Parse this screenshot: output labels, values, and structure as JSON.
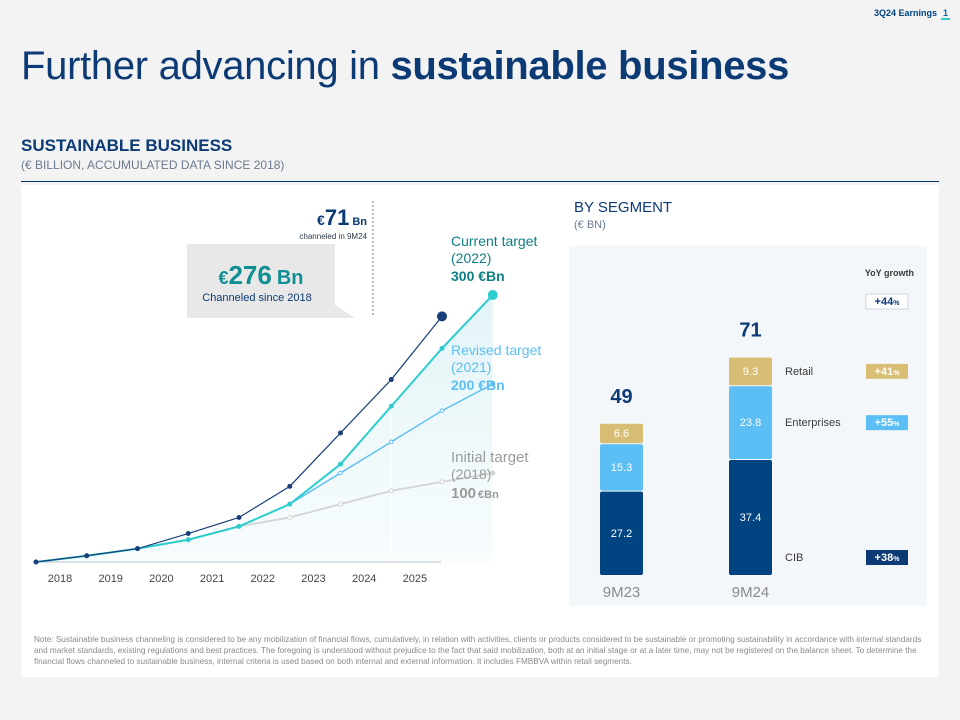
{
  "header": {
    "label": "3Q24 Earnings",
    "page": "1"
  },
  "title": {
    "normal": "Further advancing in ",
    "bold": "sustainable business"
  },
  "section": {
    "title": "SUSTAINABLE BUSINESS",
    "subtitle": "(€ BILLION, ACCUMULATED DATA SINCE 2018)"
  },
  "callouts": {
    "ytd_currency": "€",
    "ytd_value": "71",
    "ytd_unit": "Bn",
    "ytd_note": "channeled in 9M24",
    "total_currency": "€",
    "total_value": "276",
    "total_unit": "Bn",
    "total_note": "Channeled since 2018"
  },
  "targets": {
    "current": {
      "line1": "Current target",
      "line2": "(2022)",
      "value": "300 €Bn"
    },
    "revised": {
      "line1": "Revised target",
      "line2": "(2021)",
      "value": "200 €Bn"
    },
    "initial": {
      "line1": "Initial target",
      "line2": "(2018)",
      "value": "100",
      "unit": "€Bn"
    }
  },
  "segment": {
    "title": "BY SEGMENT",
    "subtitle": "(€ BN)",
    "yoy_header": "YoY growth"
  },
  "note": "Note: Sustainable business channeling is considered to be any mobilization of financial flows, cumulatively, in relation with activities, clients or products considered to be sustainable or promoting sustainability in accordance with internal standards and market standards, existing regulations and best practices. The foregoing is understood without prejudice to the fact that said mobilization, both at an initial stage or at a later time, may not be registered on the balance sheet. To determine the financial flows channeled to sustainable business, internal criteria is used based on both internal and external information. It includes FMBBVA within retail segments.",
  "colors": {
    "navy": "#0b3a75",
    "actual": "#1a3f7a",
    "current": "#2dcccd",
    "revised": "#5bbef5",
    "initial": "#d3d3d3",
    "cib": "#004481",
    "enterprises": "#5bbef5",
    "retail": "#d8be75"
  },
  "chart_data": [
    {
      "type": "line",
      "x_ticks": [
        "2018",
        "2019",
        "2020",
        "2021",
        "2022",
        "2023",
        "2024",
        "2025"
      ],
      "ylim": [
        0,
        300
      ],
      "series": [
        {
          "name": "Channeled",
          "points": [
            [
              2018,
              0
            ],
            [
              2018.5,
              7
            ],
            [
              2019,
              15
            ],
            [
              2019.5,
              32
            ],
            [
              2020,
              50
            ],
            [
              2020.5,
              85
            ],
            [
              2021,
              145
            ],
            [
              2021.5,
              205
            ],
            [
              2022,
              276
            ]
          ]
        },
        {
          "name": "Current target (2022)",
          "points": [
            [
              2018,
              0
            ],
            [
              2018.5,
              7
            ],
            [
              2019,
              15
            ],
            [
              2019.5,
              25
            ],
            [
              2020,
              40
            ],
            [
              2020.5,
              65
            ],
            [
              2021,
              110
            ],
            [
              2021.5,
              175
            ],
            [
              2022,
              240
            ],
            [
              2022.5,
              300
            ]
          ]
        },
        {
          "name": "Revised target (2021)",
          "points": [
            [
              2018,
              0
            ],
            [
              2018.5,
              7
            ],
            [
              2019,
              15
            ],
            [
              2019.5,
              25
            ],
            [
              2020,
              40
            ],
            [
              2020.5,
              65
            ],
            [
              2021,
              100
            ],
            [
              2021.5,
              135
            ],
            [
              2022,
              170
            ],
            [
              2022.5,
              200
            ]
          ]
        },
        {
          "name": "Initial target (2018)",
          "points": [
            [
              2018,
              0
            ],
            [
              2018.5,
              7
            ],
            [
              2019,
              15
            ],
            [
              2019.5,
              25
            ],
            [
              2020,
              40
            ],
            [
              2020.5,
              50
            ],
            [
              2021,
              65
            ],
            [
              2021.5,
              80
            ],
            [
              2022,
              90
            ],
            [
              2022.5,
              100
            ]
          ]
        }
      ]
    },
    {
      "type": "bar",
      "stacked": true,
      "categories": [
        "9M23",
        "9M24"
      ],
      "totals": [
        "49",
        "71"
      ],
      "series": [
        {
          "name": "CIB",
          "values": [
            27.2,
            37.4
          ],
          "growth": "+38",
          "color": "#004481"
        },
        {
          "name": "Enterprises",
          "values": [
            15.3,
            23.8
          ],
          "growth": "+55",
          "color": "#5bbef5"
        },
        {
          "name": "Retail",
          "values": [
            6.6,
            9.3
          ],
          "growth": "+41",
          "color": "#d8be75"
        }
      ],
      "total_growth": "+44",
      "growth_unit": "%"
    }
  ]
}
